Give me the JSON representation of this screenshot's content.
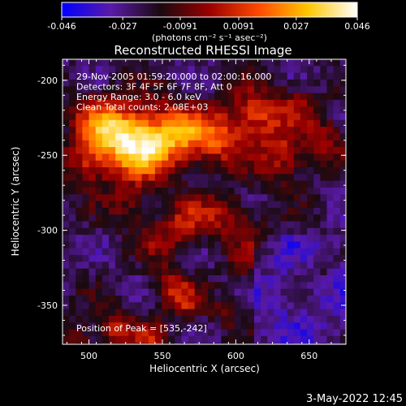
{
  "chart_data": {
    "type": "heatmap",
    "title": "Reconstructed RHESSI Image",
    "xlabel": "Heliocentric X (arcsec)",
    "ylabel": "Heliocentric Y (arcsec)",
    "xlim": [
      482,
      675
    ],
    "ylim": [
      -376,
      -186
    ],
    "x_ticks": [
      500,
      550,
      600,
      650
    ],
    "y_ticks": [
      -200,
      -250,
      -300,
      -350
    ],
    "colorbar": {
      "range": [
        -0.046,
        0.046
      ],
      "ticks": [
        "-0.046",
        "-0.027",
        "-0.0091",
        "0.0091",
        "0.027",
        "0.046"
      ],
      "units_label": "(photons cm⁻² s⁻¹ asec⁻²)",
      "stops": [
        "#0000ff",
        "#5a1aa8",
        "#1a0a10",
        "#9a0000",
        "#ff4a00",
        "#ffc800",
        "#ffffff"
      ]
    },
    "annotations": [
      "29-Nov-2005 01:59:20.000 to 02:00:16.000",
      "Detectors: 3F 4F 5F 6F 7F 8F, Att 0",
      "Energy Range: 3.0 - 6.0 keV",
      "Clean     Total counts: 2.08E+03"
    ],
    "peak_label": "Position of Peak = [535,-242]",
    "peak": {
      "x": 535,
      "y": -242
    }
  },
  "footer": {
    "timestamp": "3-May-2022 12:45"
  }
}
